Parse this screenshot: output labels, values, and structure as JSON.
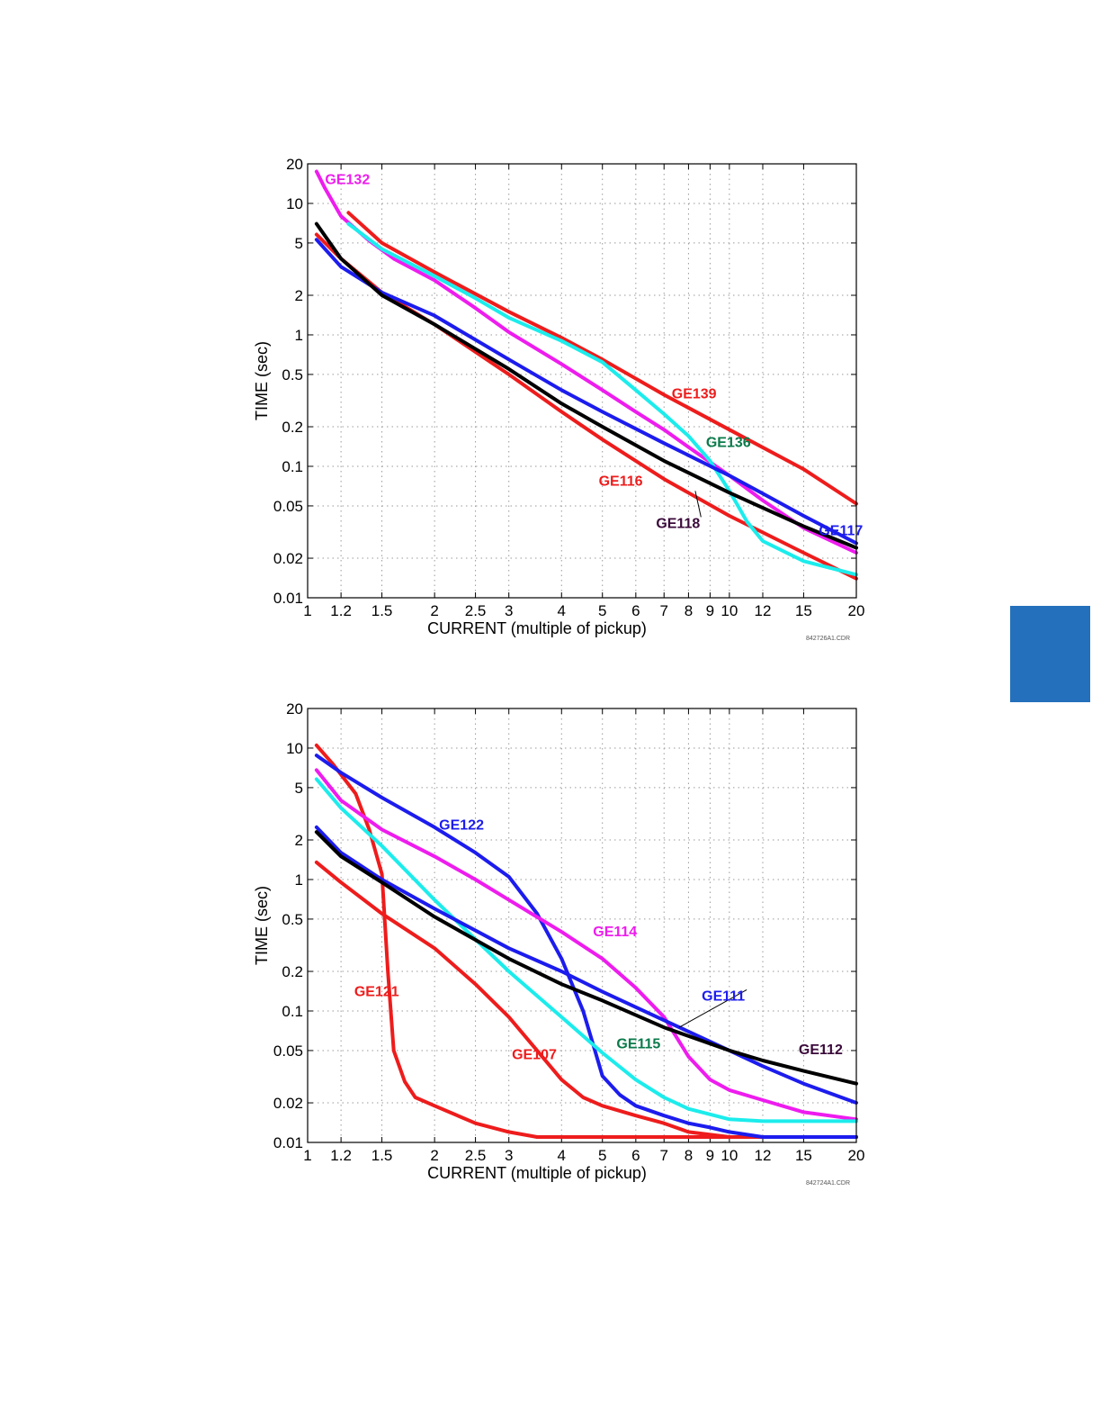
{
  "page": {
    "side_tab_color": "#2470bc"
  },
  "chart_data": [
    {
      "type": "line",
      "xscale": "log",
      "yscale": "log",
      "xlim": [
        1,
        20
      ],
      "ylim": [
        0.01,
        20
      ],
      "grid": true,
      "xlabel": "CURRENT (multiple of pickup)",
      "ylabel": "TIME (sec)",
      "figure_code": "842726A1.CDR",
      "xticks": [
        1,
        1.2,
        1.5,
        2,
        2.5,
        3,
        4,
        5,
        6,
        7,
        8,
        9,
        10,
        12,
        15,
        20
      ],
      "xtick_labels": [
        "1",
        "1.2",
        "1.5",
        "2",
        "2.5",
        "3",
        "4",
        "5",
        "6",
        "7",
        "8",
        "9",
        "10",
        "12",
        "15",
        "20"
      ],
      "yticks": [
        0.01,
        0.02,
        0.05,
        0.1,
        0.2,
        0.5,
        1,
        2,
        5,
        10,
        20
      ],
      "ytick_labels": [
        "0.01",
        "0.02",
        "0.05",
        "0.1",
        "0.2",
        "0.5",
        "1",
        "2",
        "5",
        "10",
        "20"
      ],
      "series": [
        {
          "name": "GE139",
          "color": "#ee1c1c",
          "x": [
            1.25,
            1.5,
            2,
            3,
            4,
            5,
            7,
            10,
            15,
            20
          ],
          "y": [
            8.5,
            5,
            3,
            1.5,
            0.95,
            0.65,
            0.35,
            0.19,
            0.095,
            0.052
          ]
        },
        {
          "name": "GE116",
          "color": "#ee1c1c",
          "x": [
            1.05,
            1.2,
            1.5,
            2,
            3,
            4,
            5,
            7,
            10,
            15,
            20
          ],
          "y": [
            5.8,
            3.8,
            2.1,
            1.2,
            0.5,
            0.26,
            0.16,
            0.08,
            0.042,
            0.022,
            0.014
          ]
        },
        {
          "name": "GE132",
          "color": "#ee1cee",
          "x": [
            1.05,
            1.1,
            1.2,
            1.4,
            1.6,
            2,
            2.5,
            3,
            4,
            5,
            6,
            7,
            8,
            10,
            12,
            15,
            20
          ],
          "y": [
            17.5,
            13,
            8,
            5.2,
            3.8,
            2.6,
            1.6,
            1.05,
            0.6,
            0.38,
            0.26,
            0.19,
            0.14,
            0.085,
            0.055,
            0.034,
            0.022
          ]
        },
        {
          "name": "GE136",
          "color": "#1cecec",
          "x": [
            1.25,
            1.5,
            2,
            2.5,
            3,
            4,
            5,
            6,
            7,
            8,
            9,
            10,
            11,
            12,
            15,
            20
          ],
          "y": [
            7,
            4.5,
            2.8,
            1.9,
            1.35,
            0.9,
            0.62,
            0.38,
            0.25,
            0.17,
            0.11,
            0.065,
            0.038,
            0.027,
            0.019,
            0.015
          ]
        },
        {
          "name": "GE117",
          "color": "#1c1cee",
          "x": [
            1.05,
            1.2,
            1.5,
            2,
            3,
            4,
            5,
            7,
            10,
            12,
            15,
            20
          ],
          "y": [
            5.3,
            3.3,
            2.1,
            1.4,
            0.65,
            0.38,
            0.26,
            0.15,
            0.085,
            0.062,
            0.042,
            0.026
          ]
        },
        {
          "name": "GE118",
          "color": "#000000",
          "x": [
            1.05,
            1.2,
            1.5,
            2,
            3,
            4,
            5,
            7,
            10,
            15,
            20
          ],
          "y": [
            7,
            3.8,
            2,
            1.2,
            0.55,
            0.3,
            0.2,
            0.11,
            0.063,
            0.035,
            0.024
          ]
        }
      ],
      "annotations": [
        {
          "text": "GE132",
          "color": "#ee1cee",
          "x": 1.1,
          "y": 14
        },
        {
          "text": "GE139",
          "color": "#ee1c1c",
          "x": 7.3,
          "y": 0.33
        },
        {
          "text": "GE136",
          "color": "#0a7a4a",
          "x": 8.8,
          "y": 0.14
        },
        {
          "text": "GE116",
          "color": "#ee1c1c",
          "x": 4.9,
          "y": 0.071
        },
        {
          "text": "GE118",
          "color": "#3a0a3a",
          "x": 6.7,
          "y": 0.034,
          "leader_to": [
            8.3,
            0.065
          ]
        },
        {
          "text": "GE117",
          "color": "#1c1cee",
          "x": 16.3,
          "y": 0.03
        }
      ]
    },
    {
      "type": "line",
      "xscale": "log",
      "yscale": "log",
      "xlim": [
        1,
        20
      ],
      "ylim": [
        0.01,
        20
      ],
      "grid": true,
      "xlabel": "CURRENT (multiple of pickup)",
      "ylabel": "TIME (sec)",
      "figure_code": "842724A1.CDR",
      "xticks": [
        1,
        1.2,
        1.5,
        2,
        2.5,
        3,
        4,
        5,
        6,
        7,
        8,
        9,
        10,
        12,
        15,
        20
      ],
      "xtick_labels": [
        "1",
        "1.2",
        "1.5",
        "2",
        "2.5",
        "3",
        "4",
        "5",
        "6",
        "7",
        "8",
        "9",
        "10",
        "12",
        "15",
        "20"
      ],
      "yticks": [
        0.01,
        0.02,
        0.05,
        0.1,
        0.2,
        0.5,
        1,
        2,
        5,
        10,
        20
      ],
      "ytick_labels": [
        "0.01",
        "0.02",
        "0.05",
        "0.1",
        "0.2",
        "0.5",
        "1",
        "2",
        "5",
        "10",
        "20"
      ],
      "series": [
        {
          "name": "GE121",
          "color": "#ee1c1c",
          "x": [
            1.05,
            1.15,
            1.3,
            1.4,
            1.5,
            1.55,
            1.6,
            1.7,
            1.8,
            2,
            2.5,
            3,
            3.5,
            5,
            10,
            20
          ],
          "y": [
            10.5,
            7.5,
            4.5,
            2.4,
            1.1,
            0.2,
            0.05,
            0.029,
            0.022,
            0.019,
            0.014,
            0.012,
            0.011,
            0.011,
            0.011,
            0.011
          ]
        },
        {
          "name": "GE107",
          "color": "#ee1c1c",
          "x": [
            1.05,
            1.2,
            1.5,
            2,
            2.5,
            3,
            3.5,
            4,
            4.5,
            5,
            6,
            7,
            8,
            10,
            12,
            15,
            20
          ],
          "y": [
            1.35,
            0.95,
            0.55,
            0.3,
            0.16,
            0.09,
            0.05,
            0.03,
            0.022,
            0.019,
            0.016,
            0.014,
            0.012,
            0.011,
            0.011,
            0.011,
            0.011
          ]
        },
        {
          "name": "GE122",
          "color": "#1c1cee",
          "x": [
            1.05,
            1.2,
            1.5,
            2,
            2.5,
            3,
            3.5,
            4,
            4.5,
            4.8,
            5,
            5.5,
            6,
            7,
            8,
            9,
            10,
            12,
            15,
            20
          ],
          "y": [
            8.8,
            6.5,
            4.2,
            2.5,
            1.6,
            1.05,
            0.55,
            0.25,
            0.1,
            0.05,
            0.032,
            0.023,
            0.019,
            0.016,
            0.014,
            0.013,
            0.012,
            0.011,
            0.011,
            0.011
          ]
        },
        {
          "name": "GE114",
          "color": "#ee1cee",
          "x": [
            1.05,
            1.2,
            1.5,
            2,
            2.5,
            3,
            4,
            5,
            6,
            7,
            8,
            9,
            10,
            12,
            15,
            20
          ],
          "y": [
            6.8,
            4,
            2.4,
            1.5,
            1,
            0.7,
            0.4,
            0.25,
            0.15,
            0.09,
            0.045,
            0.03,
            0.025,
            0.021,
            0.017,
            0.015
          ]
        },
        {
          "name": "GE115",
          "color": "#1cecec",
          "x": [
            1.05,
            1.2,
            1.5,
            2,
            2.5,
            3,
            4,
            5,
            6,
            7,
            8,
            10,
            12,
            15,
            20
          ],
          "y": [
            5.8,
            3.5,
            1.8,
            0.7,
            0.35,
            0.2,
            0.09,
            0.048,
            0.03,
            0.022,
            0.018,
            0.015,
            0.0145,
            0.0145,
            0.0145
          ]
        },
        {
          "name": "GE111",
          "color": "#1c1cee",
          "x": [
            1.05,
            1.2,
            1.5,
            2,
            3,
            4,
            5,
            7,
            10,
            12,
            15,
            20
          ],
          "y": [
            2.5,
            1.6,
            1,
            0.6,
            0.3,
            0.2,
            0.14,
            0.085,
            0.05,
            0.038,
            0.028,
            0.02
          ]
        },
        {
          "name": "GE112",
          "color": "#000000",
          "x": [
            1.05,
            1.2,
            1.5,
            2,
            3,
            4,
            5,
            7,
            10,
            12,
            15,
            20
          ],
          "y": [
            2.3,
            1.5,
            0.95,
            0.52,
            0.25,
            0.16,
            0.12,
            0.075,
            0.05,
            0.042,
            0.035,
            0.028
          ]
        }
      ],
      "annotations": [
        {
          "text": "GE122",
          "color": "#1c1cee",
          "x": 2.05,
          "y": 2.4
        },
        {
          "text": "GE114",
          "color": "#ee1cee",
          "x": 4.75,
          "y": 0.37
        },
        {
          "text": "GE111",
          "color": "#1c1cee",
          "x": 8.6,
          "y": 0.12,
          "leader_to": [
            7.6,
            0.075
          ]
        },
        {
          "text": "GE121",
          "color": "#ee1c1c",
          "x": 1.29,
          "y": 0.13
        },
        {
          "text": "GE107",
          "color": "#ee1c1c",
          "x": 3.05,
          "y": 0.043
        },
        {
          "text": "GE115",
          "color": "#0a7a4a",
          "x": 5.4,
          "y": 0.052
        },
        {
          "text": "GE112",
          "color": "#3a0a3a",
          "x": 14.6,
          "y": 0.047
        }
      ]
    }
  ]
}
